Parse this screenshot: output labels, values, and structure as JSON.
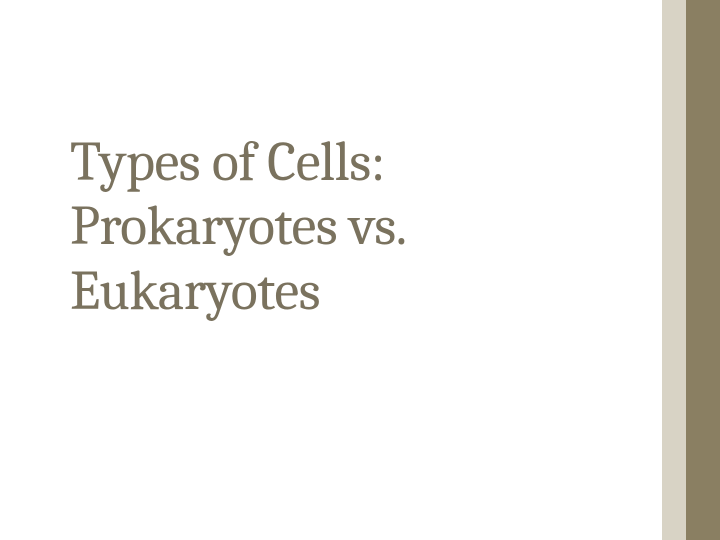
{
  "slide": {
    "title": "Types of Cells: Prokaryotes vs. Eukaryotes",
    "title_color": "#7a725e",
    "title_fontsize": 56,
    "background_color": "#ffffff",
    "sidebar": {
      "left_color": "#d8d3c5",
      "right_color": "#8a7f62",
      "width": 58,
      "left_width": 24
    }
  }
}
